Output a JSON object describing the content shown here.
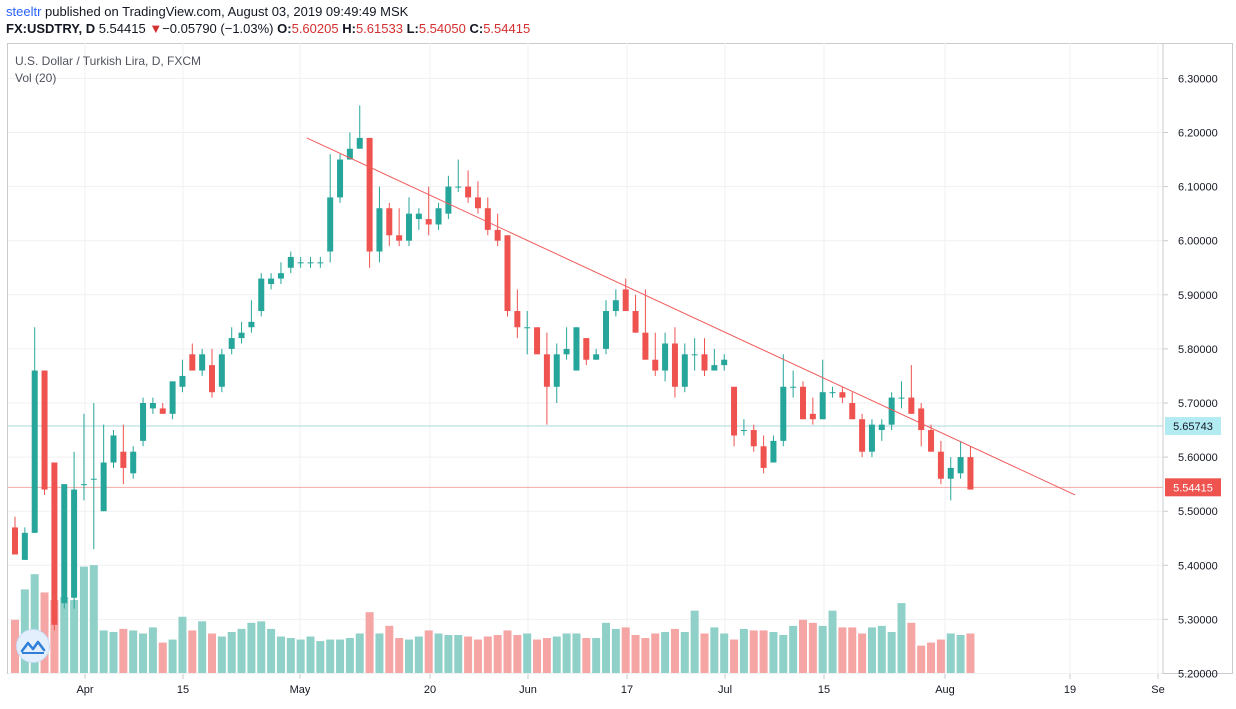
{
  "header": {
    "user": "steeltr",
    "published": " published on TradingView.com, August 03, 2019 09:49:49 MSK",
    "symbol": "FX:USDTRY, D",
    "last": "5.54415",
    "arrow": "▼",
    "change": "−0.05790 (−1.03%)",
    "o_label": "O:",
    "o": "5.60205",
    "h_label": "H:",
    "h": "5.61533",
    "l_label": "L:",
    "l": "5.54050",
    "c_label": "C:",
    "c": "5.54415"
  },
  "legend": {
    "title": "U.S. Dollar / Turkish Lira, D, FXCM",
    "volume": "Vol (20)"
  },
  "colors": {
    "up": "#26a69a",
    "down": "#ef5350",
    "vol_up": "#8fd1c8",
    "vol_down": "#f4a5a4",
    "trend": "#f15a5a",
    "hline_cyan": "#a8d8de",
    "hline_red": "#f4a9a8",
    "price_badge_cyan": "#b2ebf2",
    "price_badge_red": "#ef5350"
  },
  "chart_data": {
    "type": "candlestick",
    "instrument": "USD/TRY daily",
    "y_ticks": [
      "6.30000",
      "6.20000",
      "6.10000",
      "6.00000",
      "5.90000",
      "5.80000",
      "5.70000",
      "5.60000",
      "5.50000",
      "5.40000",
      "5.30000",
      "5.20000"
    ],
    "ylim": [
      5.2,
      6.3
    ],
    "x_ticks": [
      "Apr",
      "15",
      "May",
      "20",
      "Jun",
      "17",
      "Jul",
      "15",
      "Aug",
      "19",
      "Se"
    ],
    "price_labels": {
      "level_a": "5.65743",
      "level_b": "5.54415"
    },
    "level_a_value": 5.65743,
    "level_b_value": 5.54415,
    "trendline": {
      "start": {
        "bar": 28,
        "price": 6.19
      },
      "end": {
        "bar": 106,
        "price": 5.53
      }
    },
    "candles": [
      {
        "o": 5.47,
        "h": 5.49,
        "l": 5.42,
        "c": 5.42
      },
      {
        "o": 5.41,
        "h": 5.47,
        "l": 5.41,
        "c": 5.46
      },
      {
        "o": 5.46,
        "h": 5.84,
        "l": 5.46,
        "c": 5.76
      },
      {
        "o": 5.76,
        "h": 5.76,
        "l": 5.53,
        "c": 5.54
      },
      {
        "o": 5.59,
        "h": 5.59,
        "l": 5.28,
        "c": 5.29
      },
      {
        "o": 5.33,
        "h": 5.55,
        "l": 5.32,
        "c": 5.55
      },
      {
        "o": 5.34,
        "h": 5.61,
        "l": 5.32,
        "c": 5.54
      },
      {
        "o": 5.55,
        "h": 5.68,
        "l": 5.52,
        "c": 5.55
      },
      {
        "o": 5.56,
        "h": 5.7,
        "l": 5.43,
        "c": 5.56
      },
      {
        "o": 5.5,
        "h": 5.66,
        "l": 5.5,
        "c": 5.59
      },
      {
        "o": 5.59,
        "h": 5.65,
        "l": 5.58,
        "c": 5.64
      },
      {
        "o": 5.61,
        "h": 5.66,
        "l": 5.55,
        "c": 5.58
      },
      {
        "o": 5.57,
        "h": 5.62,
        "l": 5.56,
        "c": 5.61
      },
      {
        "o": 5.63,
        "h": 5.71,
        "l": 5.62,
        "c": 5.7
      },
      {
        "o": 5.69,
        "h": 5.71,
        "l": 5.68,
        "c": 5.7
      },
      {
        "o": 5.69,
        "h": 5.7,
        "l": 5.68,
        "c": 5.68
      },
      {
        "o": 5.68,
        "h": 5.74,
        "l": 5.67,
        "c": 5.74
      },
      {
        "o": 5.73,
        "h": 5.78,
        "l": 5.72,
        "c": 5.75
      },
      {
        "o": 5.79,
        "h": 5.81,
        "l": 5.76,
        "c": 5.76
      },
      {
        "o": 5.76,
        "h": 5.8,
        "l": 5.75,
        "c": 5.79
      },
      {
        "o": 5.77,
        "h": 5.8,
        "l": 5.71,
        "c": 5.72
      },
      {
        "o": 5.73,
        "h": 5.8,
        "l": 5.72,
        "c": 5.79
      },
      {
        "o": 5.8,
        "h": 5.84,
        "l": 5.79,
        "c": 5.82
      },
      {
        "o": 5.82,
        "h": 5.85,
        "l": 5.81,
        "c": 5.83
      },
      {
        "o": 5.84,
        "h": 5.89,
        "l": 5.83,
        "c": 5.85
      },
      {
        "o": 5.87,
        "h": 5.94,
        "l": 5.86,
        "c": 5.93
      },
      {
        "o": 5.92,
        "h": 5.94,
        "l": 5.91,
        "c": 5.93
      },
      {
        "o": 5.93,
        "h": 5.96,
        "l": 5.92,
        "c": 5.94
      },
      {
        "o": 5.95,
        "h": 5.98,
        "l": 5.94,
        "c": 5.97
      },
      {
        "o": 5.96,
        "h": 5.97,
        "l": 5.95,
        "c": 5.96
      },
      {
        "o": 5.96,
        "h": 5.97,
        "l": 5.95,
        "c": 5.96
      },
      {
        "o": 5.96,
        "h": 5.97,
        "l": 5.95,
        "c": 5.96
      },
      {
        "o": 5.98,
        "h": 6.16,
        "l": 5.96,
        "c": 6.08
      },
      {
        "o": 6.08,
        "h": 6.16,
        "l": 6.07,
        "c": 6.15
      },
      {
        "o": 6.15,
        "h": 6.2,
        "l": 6.15,
        "c": 6.17
      },
      {
        "o": 6.17,
        "h": 6.25,
        "l": 6.17,
        "c": 6.19
      },
      {
        "o": 6.19,
        "h": 6.19,
        "l": 5.95,
        "c": 5.98
      },
      {
        "o": 5.98,
        "h": 6.1,
        "l": 5.96,
        "c": 6.06
      },
      {
        "o": 6.06,
        "h": 6.07,
        "l": 5.99,
        "c": 6.01
      },
      {
        "o": 6.01,
        "h": 6.06,
        "l": 5.99,
        "c": 6.0
      },
      {
        "o": 6.0,
        "h": 6.08,
        "l": 5.99,
        "c": 6.05
      },
      {
        "o": 6.04,
        "h": 6.06,
        "l": 6.02,
        "c": 6.05
      },
      {
        "o": 6.04,
        "h": 6.1,
        "l": 6.01,
        "c": 6.03
      },
      {
        "o": 6.03,
        "h": 6.07,
        "l": 6.02,
        "c": 6.06
      },
      {
        "o": 6.05,
        "h": 6.12,
        "l": 6.04,
        "c": 6.1
      },
      {
        "o": 6.1,
        "h": 6.15,
        "l": 6.09,
        "c": 6.1
      },
      {
        "o": 6.1,
        "h": 6.13,
        "l": 6.07,
        "c": 6.08
      },
      {
        "o": 6.08,
        "h": 6.11,
        "l": 6.05,
        "c": 6.06
      },
      {
        "o": 6.06,
        "h": 6.08,
        "l": 6.01,
        "c": 6.02
      },
      {
        "o": 6.02,
        "h": 6.05,
        "l": 5.99,
        "c": 6.0
      },
      {
        "o": 6.01,
        "h": 6.01,
        "l": 5.86,
        "c": 5.87
      },
      {
        "o": 5.87,
        "h": 5.91,
        "l": 5.82,
        "c": 5.84
      },
      {
        "o": 5.84,
        "h": 5.87,
        "l": 5.79,
        "c": 5.84
      },
      {
        "o": 5.84,
        "h": 5.84,
        "l": 5.79,
        "c": 5.79
      },
      {
        "o": 5.79,
        "h": 5.83,
        "l": 5.66,
        "c": 5.73
      },
      {
        "o": 5.73,
        "h": 5.81,
        "l": 5.7,
        "c": 5.79
      },
      {
        "o": 5.79,
        "h": 5.84,
        "l": 5.78,
        "c": 5.8
      },
      {
        "o": 5.76,
        "h": 5.84,
        "l": 5.76,
        "c": 5.84
      },
      {
        "o": 5.82,
        "h": 5.82,
        "l": 5.77,
        "c": 5.78
      },
      {
        "o": 5.78,
        "h": 5.8,
        "l": 5.78,
        "c": 5.79
      },
      {
        "o": 5.8,
        "h": 5.89,
        "l": 5.79,
        "c": 5.87
      },
      {
        "o": 5.87,
        "h": 5.91,
        "l": 5.86,
        "c": 5.89
      },
      {
        "o": 5.91,
        "h": 5.93,
        "l": 5.87,
        "c": 5.87
      },
      {
        "o": 5.87,
        "h": 5.9,
        "l": 5.83,
        "c": 5.83
      },
      {
        "o": 5.83,
        "h": 5.91,
        "l": 5.78,
        "c": 5.78
      },
      {
        "o": 5.78,
        "h": 5.83,
        "l": 5.75,
        "c": 5.76
      },
      {
        "o": 5.76,
        "h": 5.83,
        "l": 5.74,
        "c": 5.81
      },
      {
        "o": 5.81,
        "h": 5.84,
        "l": 5.71,
        "c": 5.73
      },
      {
        "o": 5.73,
        "h": 5.81,
        "l": 5.72,
        "c": 5.79
      },
      {
        "o": 5.79,
        "h": 5.82,
        "l": 5.76,
        "c": 5.79
      },
      {
        "o": 5.79,
        "h": 5.82,
        "l": 5.75,
        "c": 5.76
      },
      {
        "o": 5.76,
        "h": 5.8,
        "l": 5.76,
        "c": 5.77
      },
      {
        "o": 5.77,
        "h": 5.79,
        "l": 5.76,
        "c": 5.78
      },
      {
        "o": 5.73,
        "h": 5.73,
        "l": 5.62,
        "c": 5.64
      },
      {
        "o": 5.65,
        "h": 5.67,
        "l": 5.64,
        "c": 5.65
      },
      {
        "o": 5.65,
        "h": 5.66,
        "l": 5.61,
        "c": 5.62
      },
      {
        "o": 5.62,
        "h": 5.64,
        "l": 5.57,
        "c": 5.58
      },
      {
        "o": 5.59,
        "h": 5.64,
        "l": 5.59,
        "c": 5.63
      },
      {
        "o": 5.63,
        "h": 5.79,
        "l": 5.62,
        "c": 5.73
      },
      {
        "o": 5.73,
        "h": 5.76,
        "l": 5.71,
        "c": 5.73
      },
      {
        "o": 5.73,
        "h": 5.74,
        "l": 5.67,
        "c": 5.67
      },
      {
        "o": 5.68,
        "h": 5.71,
        "l": 5.66,
        "c": 5.67
      },
      {
        "o": 5.67,
        "h": 5.78,
        "l": 5.67,
        "c": 5.72
      },
      {
        "o": 5.72,
        "h": 5.73,
        "l": 5.71,
        "c": 5.72
      },
      {
        "o": 5.72,
        "h": 5.73,
        "l": 5.7,
        "c": 5.71
      },
      {
        "o": 5.7,
        "h": 5.72,
        "l": 5.67,
        "c": 5.67
      },
      {
        "o": 5.67,
        "h": 5.68,
        "l": 5.6,
        "c": 5.61
      },
      {
        "o": 5.61,
        "h": 5.67,
        "l": 5.6,
        "c": 5.66
      },
      {
        "o": 5.65,
        "h": 5.67,
        "l": 5.63,
        "c": 5.66
      },
      {
        "o": 5.66,
        "h": 5.72,
        "l": 5.65,
        "c": 5.71
      },
      {
        "o": 5.71,
        "h": 5.74,
        "l": 5.69,
        "c": 5.71
      },
      {
        "o": 5.71,
        "h": 5.77,
        "l": 5.68,
        "c": 5.68
      },
      {
        "o": 5.69,
        "h": 5.7,
        "l": 5.62,
        "c": 5.65
      },
      {
        "o": 5.65,
        "h": 5.66,
        "l": 5.61,
        "c": 5.61
      },
      {
        "o": 5.61,
        "h": 5.63,
        "l": 5.55,
        "c": 5.56
      },
      {
        "o": 5.56,
        "h": 5.6,
        "l": 5.52,
        "c": 5.58
      },
      {
        "o": 5.57,
        "h": 5.63,
        "l": 5.56,
        "c": 5.6
      },
      {
        "o": 5.6,
        "h": 5.62,
        "l": 5.54,
        "c": 5.54
      }
    ],
    "volume_ylim": [
      0,
      100
    ],
    "volume": [
      35,
      55,
      65,
      53,
      48,
      50,
      48,
      70,
      71,
      28,
      27,
      29,
      28,
      26,
      30,
      20,
      22,
      37,
      28,
      34,
      26,
      24,
      27,
      29,
      33,
      34,
      29,
      24,
      23,
      22,
      24,
      21,
      22,
      22,
      23,
      26,
      40,
      26,
      31,
      23,
      22,
      24,
      28,
      26,
      25,
      25,
      24,
      22,
      24,
      25,
      28,
      25,
      26,
      22,
      23,
      24,
      26,
      26,
      23,
      23,
      33,
      29,
      30,
      25,
      23,
      26,
      27,
      29,
      27,
      41,
      26,
      30,
      26,
      22,
      29,
      28,
      28,
      27,
      25,
      31,
      35,
      33,
      31,
      41,
      30,
      30,
      26,
      30,
      31,
      27,
      46,
      33,
      18,
      20,
      22,
      26,
      25,
      26
    ]
  }
}
